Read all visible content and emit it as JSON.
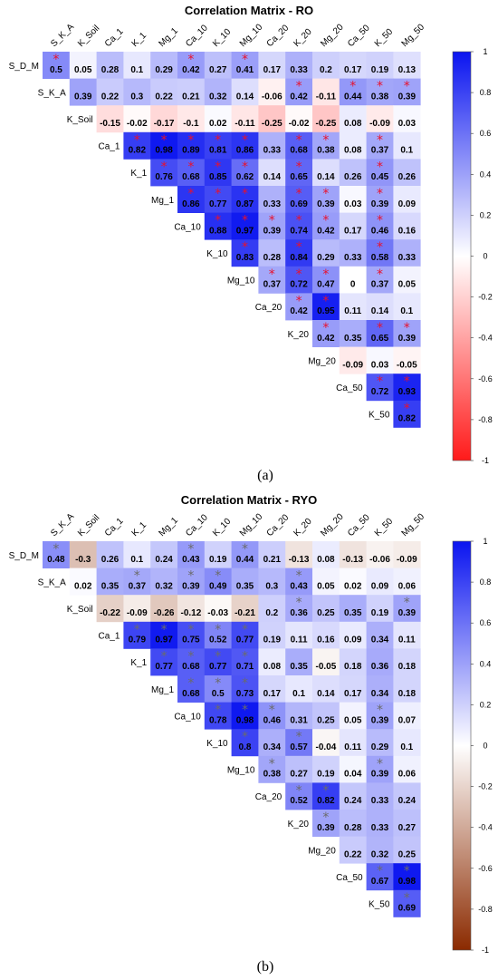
{
  "chart_data": [
    {
      "type": "heatmap",
      "title": "Correlation Matrix - RO",
      "panel_label": "(a)",
      "variables": [
        "S_D_M",
        "S_K_A",
        "K_Soil",
        "Ca_1",
        "K_1",
        "Mg_1",
        "Ca_10",
        "K_10",
        "Mg_10",
        "Ca_20",
        "K_20",
        "Mg_20",
        "Ca_50",
        "K_50",
        "Mg_50"
      ],
      "row_labels": [
        "S_D_M",
        "S_K_A",
        "K_Soil",
        "Ca_1",
        "K_1",
        "Mg_1",
        "Ca_10",
        "K_10",
        "Mg_10",
        "Ca_20",
        "K_20",
        "Mg_20",
        "Ca_50",
        "K_50"
      ],
      "col_labels": [
        "S_K_A",
        "K_Soil",
        "Ca_1",
        "K_1",
        "Mg_1",
        "Ca_10",
        "K_10",
        "Mg_10",
        "Ca_20",
        "K_20",
        "Mg_20",
        "Ca_50",
        "K_50",
        "Mg_50"
      ],
      "values": [
        [
          0.5,
          0.05,
          0.28,
          0.1,
          0.29,
          0.42,
          0.27,
          0.41,
          0.17,
          0.33,
          0.2,
          0.17,
          0.19,
          0.13
        ],
        [
          0.39,
          0.22,
          0.3,
          0.22,
          0.21,
          0.32,
          0.14,
          -0.06,
          0.42,
          -0.11,
          0.44,
          0.38,
          0.39
        ],
        [
          -0.15,
          -0.02,
          -0.17,
          -0.1,
          0.02,
          -0.11,
          -0.25,
          -0.02,
          -0.25,
          0.08,
          -0.09,
          0.03
        ],
        [
          0.82,
          0.98,
          0.89,
          0.81,
          0.86,
          0.33,
          0.68,
          0.38,
          0.08,
          0.37,
          0.1
        ],
        [
          0.76,
          0.68,
          0.85,
          0.62,
          0.14,
          0.65,
          0.14,
          0.26,
          0.45,
          0.26
        ],
        [
          0.86,
          0.77,
          0.87,
          0.33,
          0.69,
          0.39,
          0.03,
          0.39,
          0.09
        ],
        [
          0.88,
          0.97,
          0.39,
          0.74,
          0.42,
          0.17,
          0.46,
          0.16
        ],
        [
          0.83,
          0.28,
          0.84,
          0.29,
          0.33,
          0.58,
          0.33
        ],
        [
          0.37,
          0.72,
          0.47,
          0,
          0.37,
          0.05
        ],
        [
          0.42,
          0.95,
          0.11,
          0.14,
          0.1
        ],
        [
          0.42,
          0.35,
          0.65,
          0.39
        ],
        [
          -0.09,
          0.03,
          -0.05
        ],
        [
          0.72,
          0.93
        ],
        [
          0.82
        ]
      ],
      "significant": [
        [
          1,
          0,
          0,
          0,
          0,
          1,
          0,
          1,
          0,
          0,
          0,
          0,
          0,
          0
        ],
        [
          0,
          0,
          0,
          0,
          0,
          0,
          0,
          0,
          1,
          0,
          1,
          1,
          1
        ],
        [
          0,
          0,
          0,
          0,
          0,
          0,
          0,
          0,
          0,
          0,
          0,
          0
        ],
        [
          1,
          1,
          1,
          1,
          1,
          0,
          1,
          1,
          0,
          1,
          0
        ],
        [
          1,
          1,
          1,
          1,
          0,
          1,
          0,
          0,
          1,
          0
        ],
        [
          1,
          1,
          1,
          0,
          1,
          1,
          0,
          1,
          0
        ],
        [
          1,
          1,
          1,
          1,
          1,
          0,
          1,
          0
        ],
        [
          1,
          0,
          1,
          0,
          0,
          1,
          0
        ],
        [
          1,
          1,
          1,
          0,
          1,
          0
        ],
        [
          1,
          1,
          0,
          0,
          0
        ],
        [
          1,
          0,
          1,
          1
        ],
        [
          0,
          0,
          0
        ],
        [
          1,
          1
        ],
        [
          1
        ]
      ],
      "star_color": "#e8112d",
      "colorbar": {
        "min": -1,
        "max": 1,
        "ticks": [
          "1",
          "0.8",
          "0.6",
          "0.4",
          "0.2",
          "0",
          "-0.2",
          "-0.4",
          "-0.6",
          "-0.8",
          "-1"
        ]
      },
      "colors": {
        "positive": "#0a14f0",
        "negative": "#ff1a1a",
        "neutral": "#ffffff"
      }
    },
    {
      "type": "heatmap",
      "title": "Correlation Matrix - RYO",
      "panel_label": "(b)",
      "variables": [
        "S_D_M",
        "S_K_A",
        "K_Soil",
        "Ca_1",
        "K_1",
        "Mg_1",
        "Ca_10",
        "K_10",
        "Mg_10",
        "Ca_20",
        "K_20",
        "Mg_20",
        "Ca_50",
        "K_50",
        "Mg_50"
      ],
      "row_labels": [
        "S_D_M",
        "S_K_A",
        "K_Soil",
        "Ca_1",
        "K_1",
        "Mg_1",
        "Ca_10",
        "K_10",
        "Mg_10",
        "Ca_20",
        "K_20",
        "Mg_20",
        "Ca_50",
        "K_50"
      ],
      "col_labels": [
        "S_K_A",
        "K_Soil",
        "Ca_1",
        "K_1",
        "Mg_1",
        "Ca_10",
        "K_10",
        "Mg_10",
        "Ca_20",
        "K_20",
        "Mg_20",
        "Ca_50",
        "K_50",
        "Mg_50"
      ],
      "values": [
        [
          0.48,
          -0.3,
          0.26,
          0.1,
          0.24,
          0.43,
          0.19,
          0.44,
          0.21,
          -0.13,
          0.08,
          -0.13,
          -0.06,
          -0.09
        ],
        [
          0.02,
          0.35,
          0.37,
          0.32,
          0.39,
          0.49,
          0.35,
          0.3,
          0.43,
          0.05,
          0.02,
          0.09,
          0.06
        ],
        [
          -0.22,
          -0.09,
          -0.26,
          -0.12,
          -0.03,
          -0.21,
          0.2,
          0.36,
          0.25,
          0.35,
          0.19,
          0.39
        ],
        [
          0.79,
          0.97,
          0.75,
          0.52,
          0.77,
          0.19,
          0.11,
          0.16,
          0.09,
          0.34,
          0.11
        ],
        [
          0.77,
          0.68,
          0.77,
          0.71,
          0.08,
          0.35,
          -0.05,
          0.18,
          0.36,
          0.18
        ],
        [
          0.68,
          0.5,
          0.73,
          0.17,
          0.1,
          0.14,
          0.17,
          0.34,
          0.18
        ],
        [
          0.78,
          0.98,
          0.46,
          0.31,
          0.25,
          0.05,
          0.39,
          0.07
        ],
        [
          0.8,
          0.34,
          0.57,
          -0.04,
          0.11,
          0.29,
          0.1
        ],
        [
          0.38,
          0.27,
          0.19,
          0.04,
          0.39,
          0.06
        ],
        [
          0.52,
          0.82,
          0.24,
          0.33,
          0.24
        ],
        [
          0.39,
          0.28,
          0.33,
          0.27
        ],
        [
          0.22,
          0.32,
          0.25
        ],
        [
          0.67,
          0.98
        ],
        [
          0.69
        ]
      ],
      "significant": [
        [
          1,
          0,
          0,
          0,
          0,
          1,
          0,
          1,
          0,
          0,
          0,
          0,
          0,
          0
        ],
        [
          0,
          0,
          1,
          0,
          1,
          1,
          0,
          0,
          1,
          0,
          0,
          0,
          0
        ],
        [
          0,
          0,
          0,
          0,
          0,
          0,
          0,
          1,
          0,
          0,
          0,
          1
        ],
        [
          1,
          1,
          1,
          1,
          1,
          0,
          0,
          0,
          0,
          0,
          0
        ],
        [
          1,
          1,
          1,
          1,
          0,
          0,
          0,
          0,
          0,
          0
        ],
        [
          1,
          1,
          1,
          0,
          0,
          0,
          0,
          0,
          0
        ],
        [
          1,
          1,
          1,
          0,
          0,
          0,
          1,
          0
        ],
        [
          1,
          0,
          1,
          0,
          0,
          0,
          0
        ],
        [
          1,
          0,
          0,
          0,
          1,
          0
        ],
        [
          1,
          1,
          0,
          0,
          0
        ],
        [
          1,
          0,
          0,
          0
        ],
        [
          0,
          0,
          0
        ],
        [
          1,
          1
        ],
        [
          1
        ]
      ],
      "star_color": "#6b6b6b",
      "colorbar": {
        "min": -1,
        "max": 1,
        "ticks": [
          "1",
          "0.8",
          "0.6",
          "0.4",
          "0.2",
          "0",
          "-0.2",
          "-0.4",
          "-0.6",
          "-0.8",
          "-1"
        ]
      },
      "colors": {
        "positive": "#0a14f0",
        "negative": "#8b2a00",
        "neutral": "#ffffff"
      }
    }
  ]
}
